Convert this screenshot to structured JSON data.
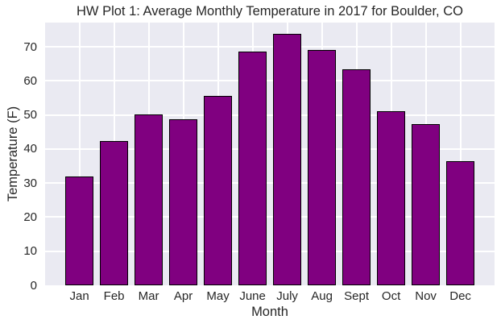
{
  "figure": {
    "kind": "matplotlib-bar-chart-screenshot",
    "background_color": "#FFFFFF"
  },
  "chart_data": {
    "type": "bar",
    "title": "HW Plot 1: Average Monthly Temperature in 2017 for Boulder, CO",
    "xlabel": "Month",
    "ylabel": "Temperature (F)",
    "categories": [
      "Jan",
      "Feb",
      "Mar",
      "Apr",
      "May",
      "June",
      "July",
      "Aug",
      "Sept",
      "Oct",
      "Nov",
      "Dec"
    ],
    "values": [
      32.0,
      42.4,
      50.1,
      48.7,
      55.6,
      68.7,
      73.9,
      69.0,
      63.5,
      51.2,
      47.3,
      36.5
    ],
    "yticks": [
      0,
      10,
      20,
      30,
      40,
      50,
      60,
      70
    ],
    "ylim": [
      0,
      77.1
    ],
    "grid": "on",
    "legend_position": "none",
    "style": {
      "plot_background": "#EAEAF2",
      "grid_color": "#FFFFFF",
      "bar_fill": "#800080",
      "bar_edge": "#000000",
      "text_color": "#262626"
    }
  }
}
